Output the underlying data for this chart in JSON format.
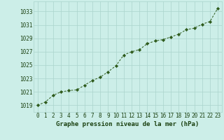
{
  "x": [
    0,
    1,
    2,
    3,
    4,
    5,
    6,
    7,
    8,
    9,
    10,
    11,
    12,
    13,
    14,
    15,
    16,
    17,
    18,
    19,
    20,
    21,
    22,
    23
  ],
  "y": [
    1019.0,
    1019.5,
    1020.5,
    1021.0,
    1021.2,
    1021.3,
    1022.0,
    1022.7,
    1023.2,
    1024.0,
    1024.9,
    1026.5,
    1027.0,
    1027.3,
    1028.2,
    1028.6,
    1028.8,
    1029.2,
    1029.6,
    1030.3,
    1030.5,
    1031.1,
    1031.5,
    1033.5
  ],
  "ylim": [
    1018.0,
    1034.5
  ],
  "yticks": [
    1019,
    1021,
    1023,
    1025,
    1027,
    1029,
    1031,
    1033
  ],
  "xticks": [
    0,
    1,
    2,
    3,
    4,
    5,
    6,
    7,
    8,
    9,
    10,
    11,
    12,
    13,
    14,
    15,
    16,
    17,
    18,
    19,
    20,
    21,
    22,
    23
  ],
  "line_color": "#2d5a1b",
  "marker_color": "#2d5a1b",
  "bg_color": "#cceee8",
  "grid_color": "#aad4cc",
  "xlabel": "Graphe pression niveau de la mer (hPa)",
  "xlabel_color": "#1a4010",
  "tick_color": "#1a4010",
  "axis_label_fontsize": 6.5,
  "tick_fontsize": 5.5
}
